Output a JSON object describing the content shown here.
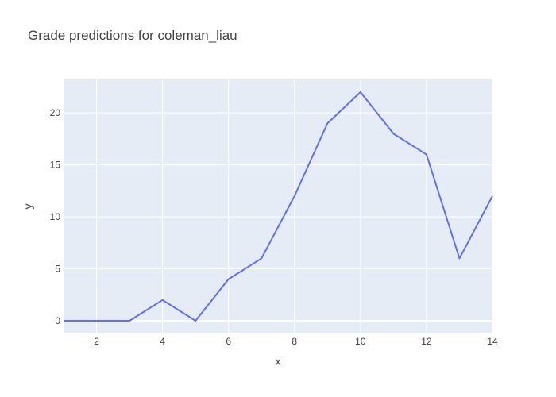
{
  "chart_data": {
    "type": "line",
    "title": "Grade predictions for coleman_liau",
    "xlabel": "x",
    "ylabel": "y",
    "x": [
      1,
      2,
      3,
      4,
      5,
      6,
      7,
      8,
      9,
      10,
      11,
      12,
      13,
      14
    ],
    "series": [
      {
        "values": [
          0,
          0,
          0,
          2,
          0,
          4,
          6,
          12,
          19,
          22,
          18,
          16,
          6,
          12
        ]
      }
    ],
    "xlim": [
      1,
      14
    ],
    "ylim": [
      -1.22,
      23.22
    ],
    "xticks": [
      2,
      4,
      6,
      8,
      10,
      12,
      14
    ],
    "yticks": [
      0,
      5,
      10,
      15,
      20
    ],
    "grid": true,
    "line_color": "#636efa",
    "plot_bg": "#e5ecf6",
    "grid_color": "#ffffff"
  }
}
